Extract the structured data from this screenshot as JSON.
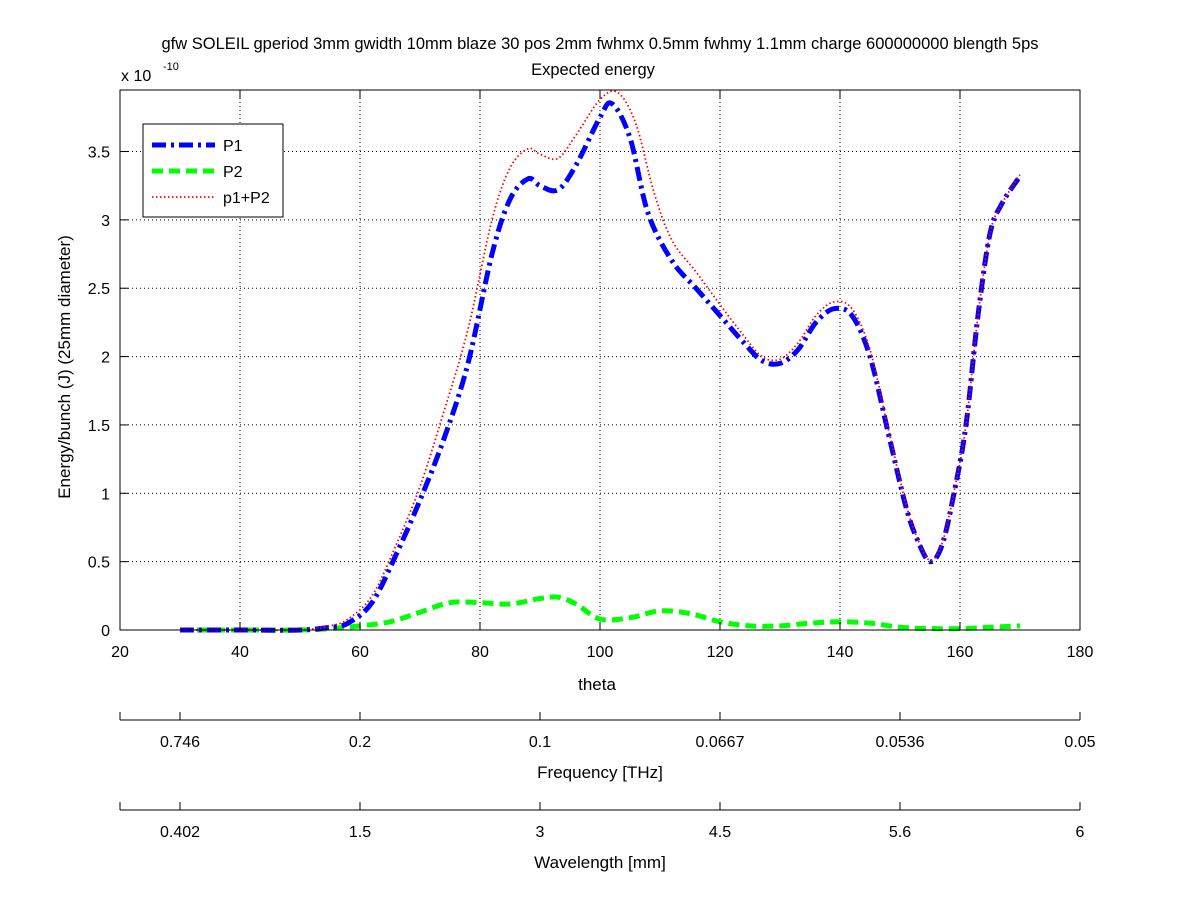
{
  "chart_data": {
    "type": "line",
    "title": "gfw SOLEIL gperiod 3mm gwidth 10mm blaze 30 pos 2mm fwhmx 0.5mm fwhmy 1.1mm charge 600000000 blength 5ps",
    "subtitle": "Expected energy",
    "xlabel": "theta",
    "ylabel": "Energy/bunch (J) (25mm diameter)",
    "y_exponent_label": "x 10",
    "y_exponent": "-10",
    "xlim": [
      20,
      180
    ],
    "ylim": [
      0,
      3.95
    ],
    "xticks": [
      20,
      40,
      60,
      80,
      100,
      120,
      140,
      160,
      180
    ],
    "yticks": [
      0,
      0.5,
      1,
      1.5,
      2,
      2.5,
      3,
      3.5
    ],
    "ytick_labels": [
      "0",
      "0.5",
      "1",
      "1.5",
      "2",
      "2.5",
      "3",
      "3.5"
    ],
    "grid": true,
    "legend_position": "top-left",
    "secondary_axes": [
      {
        "label": "Frequency [THz]",
        "theta_positions": [
          20,
          30,
          60,
          90,
          120,
          150,
          180
        ],
        "tick_labels": [
          "",
          "0.746",
          "0.2",
          "0.1",
          "0.0667",
          "0.0536",
          "0.05"
        ]
      },
      {
        "label": "Wavelength [mm]",
        "theta_positions": [
          20,
          30,
          60,
          90,
          120,
          150,
          180
        ],
        "tick_labels": [
          "",
          "0.402",
          "1.5",
          "3",
          "4.5",
          "5.6",
          "6"
        ]
      }
    ],
    "series": [
      {
        "name": "P1",
        "color": "#0000ff",
        "style": "dashdot",
        "x": [
          30,
          40,
          50,
          55,
          58,
          62,
          66,
          70,
          74,
          78,
          82,
          85,
          88,
          90,
          93,
          96,
          100,
          102,
          105,
          108,
          112,
          116,
          120,
          124,
          127,
          130,
          133,
          136,
          139,
          142,
          145,
          148,
          151,
          153,
          155,
          157,
          159,
          161,
          163,
          165,
          167,
          170
        ],
        "values": [
          0,
          0,
          0,
          0.02,
          0.05,
          0.2,
          0.55,
          0.95,
          1.4,
          1.95,
          2.75,
          3.15,
          3.3,
          3.25,
          3.22,
          3.4,
          3.75,
          3.85,
          3.6,
          3.05,
          2.7,
          2.5,
          2.3,
          2.1,
          1.97,
          1.95,
          2.05,
          2.25,
          2.35,
          2.3,
          2.0,
          1.45,
          0.9,
          0.65,
          0.5,
          0.62,
          1.0,
          1.5,
          2.3,
          2.9,
          3.12,
          3.32
        ]
      },
      {
        "name": "P2",
        "color": "#00ff00",
        "style": "dashed",
        "x": [
          30,
          40,
          50,
          55,
          60,
          65,
          70,
          75,
          80,
          85,
          90,
          93,
          96,
          100,
          105,
          110,
          115,
          120,
          125,
          130,
          135,
          140,
          145,
          150,
          155,
          160,
          165,
          170
        ],
        "values": [
          0,
          0,
          0,
          0.01,
          0.03,
          0.06,
          0.13,
          0.2,
          0.2,
          0.19,
          0.23,
          0.24,
          0.19,
          0.08,
          0.09,
          0.14,
          0.12,
          0.06,
          0.03,
          0.03,
          0.05,
          0.06,
          0.05,
          0.02,
          0.01,
          0.01,
          0.02,
          0.03
        ]
      },
      {
        "name": "p1+P2",
        "color": "#ff0000",
        "style": "dotted",
        "x": [
          30,
          40,
          50,
          55,
          58,
          62,
          66,
          70,
          74,
          78,
          82,
          85,
          88,
          90,
          93,
          96,
          100,
          103,
          106,
          109,
          112,
          116,
          120,
          124,
          127,
          130,
          133,
          136,
          139,
          142,
          145,
          148,
          151,
          153,
          155,
          157,
          159,
          161,
          163,
          165,
          167,
          170
        ],
        "values": [
          0,
          0,
          0,
          0.03,
          0.08,
          0.25,
          0.62,
          1.05,
          1.6,
          2.2,
          3.0,
          3.38,
          3.52,
          3.48,
          3.45,
          3.62,
          3.88,
          3.93,
          3.7,
          3.2,
          2.85,
          2.62,
          2.38,
          2.15,
          2.0,
          1.98,
          2.1,
          2.3,
          2.4,
          2.35,
          2.05,
          1.48,
          0.92,
          0.66,
          0.51,
          0.63,
          1.01,
          1.5,
          2.3,
          2.9,
          3.12,
          3.33
        ]
      }
    ]
  }
}
